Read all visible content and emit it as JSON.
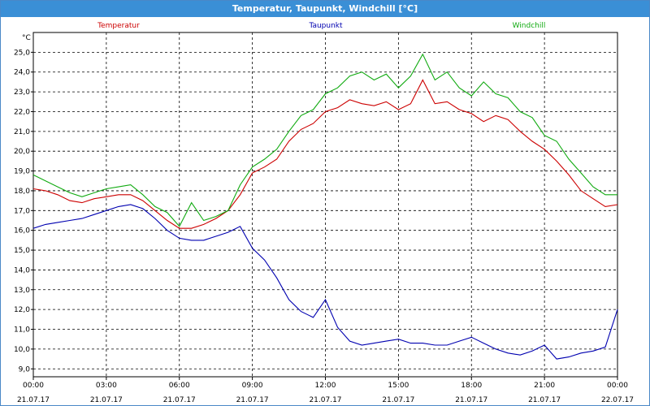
{
  "window": {
    "title": "Temperatur, Taupunkt, Windchill [°C]"
  },
  "colors": {
    "temperatur": "#cc0000",
    "taupunkt": "#0000b0",
    "windchill": "#10aa10"
  },
  "chart_data": {
    "type": "line",
    "title": "Temperatur, Taupunkt, Windchill [°C]",
    "ylabel": "°C",
    "ylim": [
      8.6,
      26.0
    ],
    "yticks": [
      9.0,
      10.0,
      11.0,
      12.0,
      13.0,
      14.0,
      15.0,
      16.0,
      17.0,
      18.0,
      19.0,
      20.0,
      21.0,
      22.0,
      23.0,
      24.0,
      25.0
    ],
    "ytick_labels": [
      "9,0",
      "10,0",
      "11,0",
      "12,0",
      "13,0",
      "14,0",
      "15,0",
      "16,0",
      "17,0",
      "18,0",
      "19,0",
      "20,0",
      "21,0",
      "22,0",
      "23,0",
      "24,0",
      "25,0"
    ],
    "xlim": [
      0,
      24
    ],
    "xticks": [
      0,
      3,
      6,
      9,
      12,
      15,
      18,
      21,
      24
    ],
    "xtick_time": [
      "00:00",
      "03:00",
      "06:00",
      "09:00",
      "12:00",
      "15:00",
      "18:00",
      "21:00",
      "00:00"
    ],
    "xtick_date": [
      "21.07.17",
      "21.07.17",
      "21.07.17",
      "21.07.17",
      "21.07.17",
      "21.07.17",
      "21.07.17",
      "21.07.17",
      "22.07.17"
    ],
    "grid": true,
    "legend_placement": "top",
    "series": [
      {
        "name": "Temperatur",
        "x": [
          0,
          0.5,
          1,
          1.5,
          2,
          2.5,
          3,
          3.5,
          4,
          4.5,
          5,
          5.5,
          6,
          6.5,
          7,
          7.5,
          8,
          8.5,
          9,
          9.5,
          10,
          10.5,
          11,
          11.5,
          12,
          12.5,
          13,
          13.5,
          14,
          14.5,
          15,
          15.5,
          16,
          16.5,
          17,
          17.5,
          18,
          18.5,
          19,
          19.5,
          20,
          20.5,
          21,
          21.5,
          22,
          22.5,
          23,
          23.5,
          24
        ],
        "values": [
          18.1,
          18.0,
          17.8,
          17.5,
          17.4,
          17.6,
          17.7,
          17.8,
          17.8,
          17.5,
          17.0,
          16.5,
          16.1,
          16.1,
          16.3,
          16.6,
          17.0,
          17.8,
          18.9,
          19.2,
          19.6,
          20.5,
          21.1,
          21.4,
          22.0,
          22.2,
          22.6,
          22.4,
          22.3,
          22.5,
          22.1,
          22.4,
          23.6,
          22.4,
          22.5,
          22.1,
          21.9,
          21.5,
          21.8,
          21.6,
          21.0,
          20.5,
          20.1,
          19.5,
          18.8,
          18.0,
          17.6,
          17.2,
          17.3
        ]
      },
      {
        "name": "Taupunkt",
        "x": [
          0,
          0.5,
          1,
          1.5,
          2,
          2.5,
          3,
          3.5,
          4,
          4.5,
          5,
          5.5,
          6,
          6.5,
          7,
          7.5,
          8,
          8.5,
          9,
          9.5,
          10,
          10.5,
          11,
          11.5,
          12,
          12.5,
          13,
          13.5,
          14,
          14.5,
          15,
          15.5,
          16,
          16.5,
          17,
          17.5,
          18,
          18.5,
          19,
          19.5,
          20,
          20.5,
          21,
          21.5,
          22,
          22.5,
          23,
          23.5,
          24
        ],
        "values": [
          16.1,
          16.3,
          16.4,
          16.5,
          16.6,
          16.8,
          17.0,
          17.2,
          17.3,
          17.1,
          16.6,
          16.0,
          15.6,
          15.5,
          15.5,
          15.7,
          15.9,
          16.2,
          15.1,
          14.5,
          13.6,
          12.5,
          11.9,
          11.6,
          12.5,
          11.1,
          10.4,
          10.2,
          10.3,
          10.4,
          10.5,
          10.3,
          10.3,
          10.2,
          10.2,
          10.4,
          10.6,
          10.3,
          10.0,
          9.8,
          9.7,
          9.9,
          10.2,
          9.5,
          9.6,
          9.8,
          9.9,
          10.1,
          12.0
        ]
      },
      {
        "name": "Windchill",
        "x": [
          0,
          0.5,
          1,
          1.5,
          2,
          2.5,
          3,
          3.5,
          4,
          4.5,
          5,
          5.5,
          6,
          6.5,
          7,
          7.5,
          8,
          8.5,
          9,
          9.5,
          10,
          10.5,
          11,
          11.5,
          12,
          12.5,
          13,
          13.5,
          14,
          14.5,
          15,
          15.5,
          16,
          16.5,
          17,
          17.5,
          18,
          18.5,
          19,
          19.5,
          20,
          20.5,
          21,
          21.5,
          22,
          22.5,
          23,
          23.5,
          24
        ],
        "values": [
          18.8,
          18.5,
          18.2,
          17.9,
          17.7,
          17.9,
          18.1,
          18.2,
          18.3,
          17.8,
          17.2,
          16.9,
          16.2,
          17.4,
          16.5,
          16.7,
          17.0,
          18.3,
          19.2,
          19.6,
          20.1,
          21.0,
          21.8,
          22.1,
          22.9,
          23.2,
          23.8,
          24.0,
          23.6,
          23.9,
          23.2,
          23.8,
          24.9,
          23.6,
          24.0,
          23.2,
          22.8,
          23.5,
          22.9,
          22.7,
          22.0,
          21.7,
          20.8,
          20.5,
          19.6,
          18.9,
          18.2,
          17.8,
          17.8
        ]
      }
    ]
  }
}
